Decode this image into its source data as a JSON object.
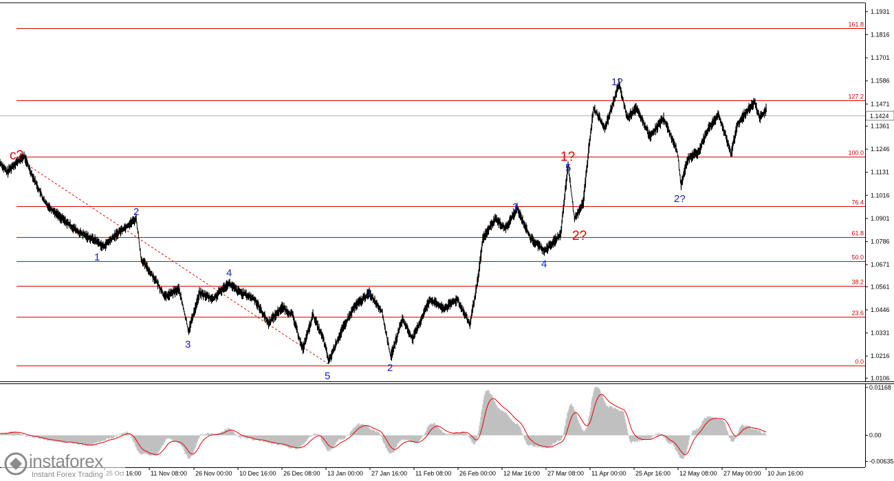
{
  "chart_data": [
    {
      "type": "line",
      "price_axis_labels": [
        "1.1931",
        "1.1816",
        "1.1701",
        "1.1586",
        "1.1471",
        "1.1361",
        "1.1246",
        "1.1131",
        "1.1016",
        "1.0901",
        "1.0786",
        "1.0671",
        "1.0561",
        "1.0446",
        "1.0331",
        "1.0216",
        "1.0106"
      ],
      "ylim": [
        1.009,
        1.1975
      ],
      "current_price": "1.1424",
      "date_labels": [
        "25 Oct 16:00",
        "11 Nov 08:00",
        "26 Nov 00:00",
        "10 Dec 16:00",
        "26 Dec 08:00",
        "13 Jan 00:00",
        "27 Jan 16:00",
        "11 Feb 08:00",
        "26 Feb 00:00",
        "12 Mar 16:00",
        "27 Mar 08:00",
        "11 Apr 00:00",
        "25 Apr 16:00",
        "12 May 08:00",
        "27 May 00:00",
        "10 Jun 16:00"
      ],
      "fibonacci_levels": [
        {
          "label": "161.8",
          "price": 1.185
        },
        {
          "label": "127.2",
          "price": 1.149
        },
        {
          "label": "100.0",
          "price": 1.1207
        },
        {
          "label": "76.4",
          "price": 1.0962
        },
        {
          "label": "61.8",
          "price": 1.081
        },
        {
          "label": "50.0",
          "price": 1.0687
        },
        {
          "label": "38.2",
          "price": 1.0565
        },
        {
          "label": "23.6",
          "price": 1.0413
        },
        {
          "label": "0.0",
          "price": 1.0168
        }
      ],
      "price_keypoints": [
        [
          0,
          1.118
        ],
        [
          10,
          1.113
        ],
        [
          20,
          1.117
        ],
        [
          35,
          1.121
        ],
        [
          45,
          1.113
        ],
        [
          65,
          1.098
        ],
        [
          90,
          1.09
        ],
        [
          115,
          1.083
        ],
        [
          140,
          1.079
        ],
        [
          150,
          1.076
        ],
        [
          175,
          1.084
        ],
        [
          198,
          1.09
        ],
        [
          205,
          1.07
        ],
        [
          225,
          1.06
        ],
        [
          240,
          1.051
        ],
        [
          260,
          1.055
        ],
        [
          274,
          1.034
        ],
        [
          290,
          1.053
        ],
        [
          310,
          1.05
        ],
        [
          332,
          1.058
        ],
        [
          345,
          1.054
        ],
        [
          370,
          1.05
        ],
        [
          390,
          1.038
        ],
        [
          410,
          1.046
        ],
        [
          425,
          1.042
        ],
        [
          440,
          1.025
        ],
        [
          455,
          1.042
        ],
        [
          470,
          1.03
        ],
        [
          478,
          1.019
        ],
        [
          495,
          1.033
        ],
        [
          515,
          1.046
        ],
        [
          537,
          1.053
        ],
        [
          555,
          1.044
        ],
        [
          568,
          1.021
        ],
        [
          585,
          1.04
        ],
        [
          600,
          1.03
        ],
        [
          625,
          1.05
        ],
        [
          645,
          1.045
        ],
        [
          665,
          1.05
        ],
        [
          683,
          1.037
        ],
        [
          695,
          1.06
        ],
        [
          702,
          1.08
        ],
        [
          720,
          1.09
        ],
        [
          735,
          1.085
        ],
        [
          752,
          1.095
        ],
        [
          772,
          1.08
        ],
        [
          792,
          1.074
        ],
        [
          815,
          1.082
        ],
        [
          826,
          1.117
        ],
        [
          835,
          1.09
        ],
        [
          848,
          1.098
        ],
        [
          856,
          1.125
        ],
        [
          863,
          1.145
        ],
        [
          880,
          1.135
        ],
        [
          900,
          1.157
        ],
        [
          912,
          1.14
        ],
        [
          925,
          1.145
        ],
        [
          945,
          1.131
        ],
        [
          965,
          1.14
        ],
        [
          985,
          1.123
        ],
        [
          990,
          1.107
        ],
        [
          1000,
          1.12
        ],
        [
          1015,
          1.123
        ],
        [
          1030,
          1.135
        ],
        [
          1045,
          1.142
        ],
        [
          1063,
          1.122
        ],
        [
          1072,
          1.137
        ],
        [
          1085,
          1.143
        ],
        [
          1097,
          1.148
        ],
        [
          1105,
          1.14
        ],
        [
          1115,
          1.145
        ]
      ],
      "series": [
        {
          "values": [
            1.138,
            1.136,
            1.14,
            1.137,
            1.141,
            1.139,
            1.1424
          ]
        }
      ]
    },
    {
      "type": "area",
      "oscillator_axis_labels": [
        "0.01168",
        "0.00",
        "-0.00635"
      ],
      "ylim": [
        -0.0078,
        0.0125
      ],
      "keypoints": [
        [
          0,
          0.0004
        ],
        [
          20,
          0.0008
        ],
        [
          45,
          -0.0003
        ],
        [
          70,
          -0.0012
        ],
        [
          100,
          -0.0018
        ],
        [
          130,
          -0.0024
        ],
        [
          160,
          -0.0008
        ],
        [
          185,
          0.0008
        ],
        [
          205,
          -0.0045
        ],
        [
          225,
          -0.005
        ],
        [
          245,
          -0.0008
        ],
        [
          260,
          -0.0018
        ],
        [
          275,
          -0.0055
        ],
        [
          295,
          0.0004
        ],
        [
          315,
          0.0003
        ],
        [
          332,
          0.0016
        ],
        [
          350,
          -0.0005
        ],
        [
          375,
          -0.0012
        ],
        [
          400,
          -0.0022
        ],
        [
          430,
          -0.0032
        ],
        [
          460,
          0.0004
        ],
        [
          478,
          -0.0038
        ],
        [
          495,
          -0.001
        ],
        [
          525,
          0.0028
        ],
        [
          548,
          0.001
        ],
        [
          568,
          -0.0045
        ],
        [
          585,
          -0.001
        ],
        [
          605,
          -0.0018
        ],
        [
          630,
          0.003
        ],
        [
          650,
          0.0002
        ],
        [
          675,
          0.0008
        ],
        [
          690,
          -0.002
        ],
        [
          708,
          0.011
        ],
        [
          730,
          0.006
        ],
        [
          750,
          0.003
        ],
        [
          770,
          -0.0025
        ],
        [
          795,
          -0.003
        ],
        [
          815,
          -0.0012
        ],
        [
          830,
          0.0075
        ],
        [
          850,
          0.001
        ],
        [
          867,
          0.012
        ],
        [
          885,
          0.007
        ],
        [
          905,
          0.006
        ],
        [
          918,
          -0.0018
        ],
        [
          940,
          -0.001
        ],
        [
          960,
          0.0003
        ],
        [
          975,
          -0.002
        ],
        [
          993,
          -0.0058
        ],
        [
          1008,
          0.001
        ],
        [
          1030,
          0.0045
        ],
        [
          1050,
          0.004
        ],
        [
          1065,
          -0.0015
        ],
        [
          1080,
          0.0025
        ],
        [
          1097,
          0.0016
        ],
        [
          1115,
          0.0003
        ]
      ]
    }
  ],
  "wave_labels": [
    {
      "text": "c?",
      "color": "red"
    },
    {
      "text": "2",
      "color": "blue"
    },
    {
      "text": "1",
      "color": "blue"
    },
    {
      "text": "3",
      "color": "blue"
    },
    {
      "text": "4",
      "color": "blue"
    },
    {
      "text": "5",
      "color": "blue"
    },
    {
      "text": "1",
      "color": "blue"
    },
    {
      "text": "2",
      "color": "blue"
    },
    {
      "text": "3",
      "color": "blue"
    },
    {
      "text": "4",
      "color": "blue"
    },
    {
      "text": "5",
      "color": "blue"
    },
    {
      "text": "1?",
      "color": "red"
    },
    {
      "text": "2?",
      "color": "red"
    },
    {
      "text": "1?",
      "color": "blue"
    },
    {
      "text": "2?",
      "color": "blue"
    }
  ],
  "logo": {
    "name": "instaforex",
    "tagline": "Instant Forex Trading"
  },
  "colors": {
    "price": "#000000",
    "fibonacci": "#d80000",
    "wave_blue": "#1a1acc",
    "wave_red": "#dd0000",
    "histogram": "#c0c0c0",
    "signal": "#e00000",
    "trendline": "#e00000"
  }
}
